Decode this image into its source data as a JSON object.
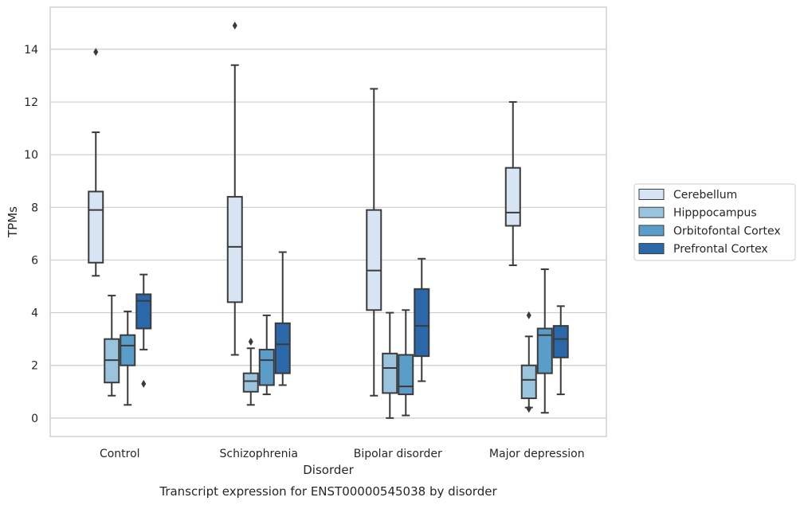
{
  "chart_data": {
    "type": "box",
    "caption": "Transcript expression for ENST00000545038 by disorder",
    "xlabel": "Disorder",
    "ylabel": "TPMs",
    "ylim": [
      -0.7,
      15.6
    ],
    "yticks": [
      0,
      2,
      4,
      6,
      8,
      10,
      12,
      14
    ],
    "grid": "horizontal",
    "legend_position": "right",
    "categories": [
      "Control",
      "Schizophrenia",
      "Bipolar disorder",
      "Major depression"
    ],
    "series": [
      {
        "name": "Cerebellum",
        "color": "#d6e4f3",
        "boxes": [
          {
            "whisker_low": 5.4,
            "q1": 5.9,
            "median": 7.9,
            "q3": 8.6,
            "whisker_high": 10.85,
            "outliers": [
              13.9
            ]
          },
          {
            "whisker_low": 2.4,
            "q1": 4.4,
            "median": 6.5,
            "q3": 8.4,
            "whisker_high": 13.4,
            "outliers": [
              14.9
            ]
          },
          {
            "whisker_low": 0.85,
            "q1": 4.1,
            "median": 5.6,
            "q3": 7.9,
            "whisker_high": 12.5,
            "outliers": []
          },
          {
            "whisker_low": 5.8,
            "q1": 7.3,
            "median": 7.8,
            "q3": 9.5,
            "whisker_high": 12.0,
            "outliers": []
          }
        ]
      },
      {
        "name": "Hipppocampus",
        "color": "#9ac3dd",
        "boxes": [
          {
            "whisker_low": 0.85,
            "q1": 1.35,
            "median": 2.2,
            "q3": 3.0,
            "whisker_high": 4.65,
            "outliers": []
          },
          {
            "whisker_low": 0.5,
            "q1": 1.0,
            "median": 1.4,
            "q3": 1.7,
            "whisker_high": 2.65,
            "outliers": [
              2.9
            ]
          },
          {
            "whisker_low": 0.0,
            "q1": 0.95,
            "median": 1.9,
            "q3": 2.45,
            "whisker_high": 4.0,
            "outliers": []
          },
          {
            "whisker_low": 0.4,
            "q1": 0.75,
            "median": 1.45,
            "q3": 2.0,
            "whisker_high": 3.1,
            "outliers": [
              0.35,
              3.9
            ]
          }
        ]
      },
      {
        "name": "Orbitofontal Cortex",
        "color": "#5b9dc9",
        "boxes": [
          {
            "whisker_low": 0.5,
            "q1": 2.0,
            "median": 2.75,
            "q3": 3.15,
            "whisker_high": 4.05,
            "outliers": []
          },
          {
            "whisker_low": 0.9,
            "q1": 1.25,
            "median": 2.2,
            "q3": 2.6,
            "whisker_high": 3.9,
            "outliers": []
          },
          {
            "whisker_low": 0.1,
            "q1": 0.9,
            "median": 1.2,
            "q3": 2.4,
            "whisker_high": 4.1,
            "outliers": []
          },
          {
            "whisker_low": 0.2,
            "q1": 1.7,
            "median": 3.15,
            "q3": 3.4,
            "whisker_high": 5.65,
            "outliers": []
          }
        ]
      },
      {
        "name": "Prefrontal Cortex",
        "color": "#2a68aa",
        "boxes": [
          {
            "whisker_low": 2.6,
            "q1": 3.4,
            "median": 4.45,
            "q3": 4.7,
            "whisker_high": 5.45,
            "outliers": [
              1.3
            ]
          },
          {
            "whisker_low": 1.25,
            "q1": 1.7,
            "median": 2.8,
            "q3": 3.6,
            "whisker_high": 6.3,
            "outliers": []
          },
          {
            "whisker_low": 1.4,
            "q1": 2.35,
            "median": 3.5,
            "q3": 4.9,
            "whisker_high": 6.05,
            "outliers": []
          },
          {
            "whisker_low": 0.9,
            "q1": 2.3,
            "median": 3.0,
            "q3": 3.5,
            "whisker_high": 4.25,
            "outliers": []
          }
        ]
      }
    ]
  }
}
